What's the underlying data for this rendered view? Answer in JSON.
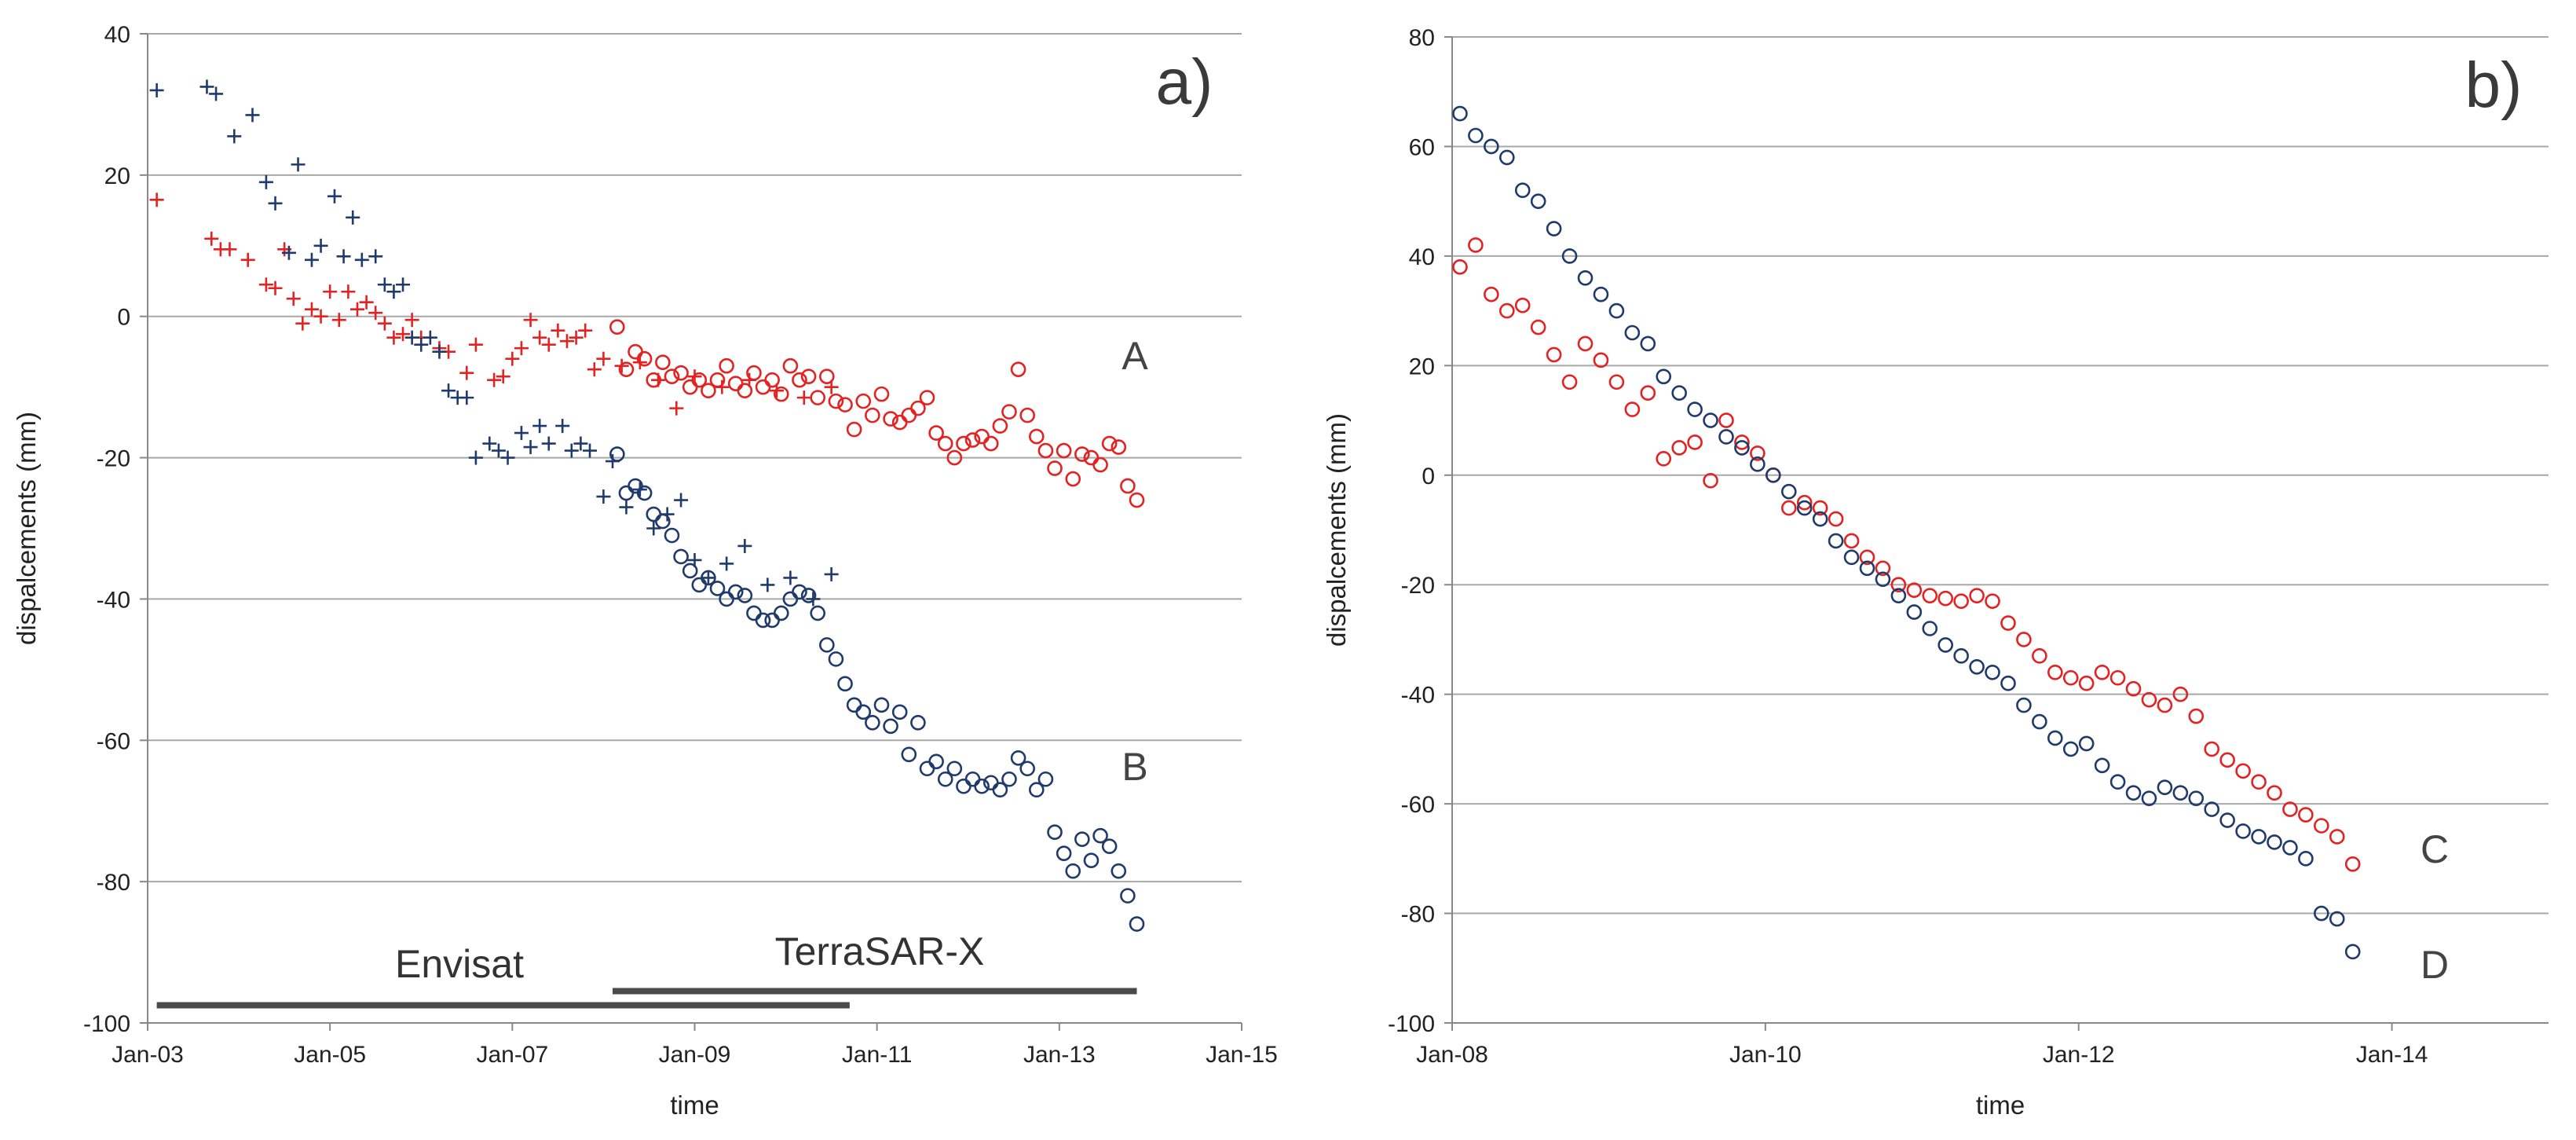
{
  "chart_data": [
    {
      "panel": "a)",
      "type": "scatter",
      "xlabel": "time",
      "ylabel": "dispalcements (mm)",
      "xticks": [
        "Jan-03",
        "Jan-05",
        "Jan-07",
        "Jan-09",
        "Jan-11",
        "Jan-13",
        "Jan-15"
      ],
      "xlim": [
        2003,
        2015
      ],
      "ylim": [
        -100,
        40
      ],
      "yticks": [
        -100,
        -80,
        -60,
        -40,
        -20,
        0,
        20,
        40
      ],
      "grid": "horizontal",
      "colors": {
        "A": "#e32222",
        "B": "#1f3a6b",
        "bar": "#4a4a4a"
      },
      "series": [
        {
          "name": "A",
          "sensor": "Envisat",
          "marker": "plus",
          "color": "#e32222",
          "x": [
            2003.1,
            2003.7,
            2003.8,
            2003.9,
            2004.1,
            2004.3,
            2004.4,
            2004.5,
            2004.6,
            2004.7,
            2004.8,
            2004.9,
            2005.0,
            2005.1,
            2005.2,
            2005.3,
            2005.4,
            2005.5,
            2005.6,
            2005.7,
            2005.8,
            2005.9,
            2006.0,
            2006.2,
            2006.3,
            2006.5,
            2006.6,
            2006.8,
            2006.9,
            2007.0,
            2007.1,
            2007.2,
            2007.3,
            2007.4,
            2007.5,
            2007.6,
            2007.7,
            2007.8,
            2007.9,
            2008.0,
            2008.2,
            2008.4,
            2008.6,
            2008.8,
            2009.0,
            2009.3,
            2009.6,
            2009.9,
            2010.2,
            2010.5
          ],
          "y": [
            16.5,
            11,
            9.5,
            9.5,
            8,
            4.5,
            4,
            9.5,
            2.5,
            -1,
            1,
            0,
            3.5,
            -0.5,
            3.5,
            1,
            2,
            0.5,
            -1,
            -3,
            -2.5,
            -0.5,
            -3,
            -4.5,
            -5,
            -8,
            -4,
            -9,
            -8.5,
            -6,
            -4.5,
            -0.5,
            -3,
            -4,
            -2,
            -3.5,
            -3,
            -2,
            -7.5,
            -6,
            -7,
            -6.5,
            -9,
            -13,
            -8.5,
            -10,
            -9,
            -10.5,
            -11.5,
            -10
          ]
        },
        {
          "name": "A",
          "sensor": "TerraSAR-X",
          "marker": "circle",
          "color": "#e32222",
          "x": [
            2008.15,
            2008.25,
            2008.35,
            2008.45,
            2008.55,
            2008.65,
            2008.75,
            2008.85,
            2008.95,
            2009.05,
            2009.15,
            2009.25,
            2009.35,
            2009.45,
            2009.55,
            2009.65,
            2009.75,
            2009.85,
            2009.95,
            2010.05,
            2010.15,
            2010.25,
            2010.35,
            2010.45,
            2010.55,
            2010.65,
            2010.75,
            2010.85,
            2010.95,
            2011.05,
            2011.15,
            2011.25,
            2011.35,
            2011.45,
            2011.55,
            2011.65,
            2011.75,
            2011.85,
            2011.95,
            2012.05,
            2012.15,
            2012.25,
            2012.35,
            2012.45,
            2012.55,
            2012.65,
            2012.75,
            2012.85,
            2012.95,
            2013.05,
            2013.15,
            2013.25,
            2013.35,
            2013.45,
            2013.55,
            2013.65,
            2013.75,
            2013.85
          ],
          "y": [
            -1.5,
            -7.5,
            -5,
            -6,
            -9,
            -6.5,
            -8.5,
            -8,
            -10,
            -9,
            -10.5,
            -9,
            -7,
            -9.5,
            -10.5,
            -8,
            -10,
            -9,
            -11,
            -7,
            -9,
            -8.5,
            -11.5,
            -8.5,
            -12,
            -12.5,
            -16,
            -12,
            -14,
            -11,
            -14.5,
            -15,
            -14,
            -13,
            -11.5,
            -16.5,
            -18,
            -20,
            -18,
            -17.5,
            -17,
            -18,
            -15.5,
            -13.5,
            -7.5,
            -14,
            -17,
            -19,
            -21.5,
            -19,
            -23,
            -19.5,
            -20,
            -21,
            -18,
            -18.5,
            -24,
            -26
          ]
        },
        {
          "name": "B",
          "sensor": "Envisat",
          "marker": "plus",
          "color": "#1f3a6b",
          "x": [
            2003.1,
            2003.65,
            2003.75,
            2003.95,
            2004.15,
            2004.3,
            2004.4,
            2004.55,
            2004.65,
            2004.8,
            2004.9,
            2005.05,
            2005.15,
            2005.25,
            2005.35,
            2005.5,
            2005.6,
            2005.7,
            2005.8,
            2005.9,
            2006.0,
            2006.1,
            2006.2,
            2006.3,
            2006.4,
            2006.5,
            2006.6,
            2006.75,
            2006.85,
            2006.95,
            2007.1,
            2007.2,
            2007.3,
            2007.4,
            2007.55,
            2007.65,
            2007.75,
            2007.85,
            2008.0,
            2008.1,
            2008.25,
            2008.4,
            2008.55,
            2008.7,
            2008.85,
            2009.0,
            2009.15,
            2009.35,
            2009.55,
            2009.8,
            2010.05,
            2010.3,
            2010.5
          ],
          "y": [
            32,
            32.5,
            31.5,
            25.5,
            28.5,
            19,
            16,
            9,
            21.5,
            8,
            10,
            17,
            8.5,
            14,
            8,
            8.5,
            4.5,
            3.5,
            4.5,
            -3,
            -4,
            -3,
            -5,
            -10.5,
            -11.5,
            -11.5,
            -20,
            -18,
            -19,
            -20,
            -16.5,
            -18.5,
            -15.5,
            -18,
            -15.5,
            -19,
            -18,
            -19,
            -25.5,
            -20.5,
            -27,
            -24.5,
            -30,
            -28,
            -26,
            -34.5,
            -37,
            -35,
            -32.5,
            -38,
            -37,
            -40,
            -36.5
          ]
        },
        {
          "name": "B",
          "sensor": "TerraSAR-X",
          "marker": "circle",
          "color": "#1f3a6b",
          "x": [
            2008.15,
            2008.25,
            2008.35,
            2008.45,
            2008.55,
            2008.65,
            2008.75,
            2008.85,
            2008.95,
            2009.05,
            2009.15,
            2009.25,
            2009.35,
            2009.45,
            2009.55,
            2009.65,
            2009.75,
            2009.85,
            2009.95,
            2010.05,
            2010.15,
            2010.25,
            2010.35,
            2010.45,
            2010.55,
            2010.65,
            2010.75,
            2010.85,
            2010.95,
            2011.05,
            2011.15,
            2011.25,
            2011.35,
            2011.45,
            2011.55,
            2011.65,
            2011.75,
            2011.85,
            2011.95,
            2012.05,
            2012.15,
            2012.25,
            2012.35,
            2012.45,
            2012.55,
            2012.65,
            2012.75,
            2012.85,
            2012.95,
            2013.05,
            2013.15,
            2013.25,
            2013.35,
            2013.45,
            2013.55,
            2013.65,
            2013.75,
            2013.85
          ],
          "y": [
            -19.5,
            -25,
            -24,
            -25,
            -28,
            -29,
            -31,
            -34,
            -36,
            -38,
            -37,
            -38.5,
            -40,
            -39,
            -39.5,
            -42,
            -43,
            -43,
            -42,
            -40,
            -39,
            -39.5,
            -42,
            -46.5,
            -48.5,
            -52,
            -55,
            -56,
            -57.5,
            -55,
            -58,
            -56,
            -62,
            -57.5,
            -64,
            -63,
            -65.5,
            -64,
            -66.5,
            -65.5,
            -66.5,
            -66,
            -67,
            -65.5,
            -62.5,
            -64,
            -67,
            -65.5,
            -73,
            -76,
            -78.5,
            -74,
            -77,
            -73.5,
            -75,
            -78.5,
            -82,
            -86
          ]
        }
      ],
      "annotations": {
        "series_labels": [
          "A",
          "B"
        ],
        "bars": [
          "Envisat",
          "TerraSAR-X"
        ]
      },
      "bars": [
        {
          "label": "Envisat",
          "start": 2003.1,
          "end": 2010.7,
          "y": -97.5
        },
        {
          "label": "TerraSAR-X",
          "start": 2008.1,
          "end": 2013.85,
          "y": -95.5
        }
      ]
    },
    {
      "panel": "b)",
      "type": "scatter",
      "xlabel": "time",
      "ylabel": "dispalcements (mm)",
      "xticks": [
        "Jan-08",
        "Jan-10",
        "Jan-12",
        "Jan-14"
      ],
      "xlim": [
        2008,
        2015
      ],
      "ylim": [
        -100,
        80
      ],
      "yticks": [
        -100,
        -80,
        -60,
        -40,
        -20,
        0,
        20,
        40,
        60,
        80
      ],
      "grid": "horizontal",
      "colors": {
        "C": "#e32222",
        "D": "#1f3a6b"
      },
      "series": [
        {
          "name": "C",
          "marker": "circle",
          "color": "#e32222",
          "x": [
            2008.05,
            2008.15,
            2008.25,
            2008.35,
            2008.45,
            2008.55,
            2008.65,
            2008.75,
            2008.85,
            2008.95,
            2009.05,
            2009.15,
            2009.25,
            2009.35,
            2009.45,
            2009.55,
            2009.65,
            2009.75,
            2009.85,
            2009.95,
            2010.05,
            2010.15,
            2010.25,
            2010.35,
            2010.45,
            2010.55,
            2010.65,
            2010.75,
            2010.85,
            2010.95,
            2011.05,
            2011.15,
            2011.25,
            2011.35,
            2011.45,
            2011.55,
            2011.65,
            2011.75,
            2011.85,
            2011.95,
            2012.05,
            2012.15,
            2012.25,
            2012.35,
            2012.45,
            2012.55,
            2012.65,
            2012.75,
            2012.85,
            2012.95,
            2013.05,
            2013.15,
            2013.25,
            2013.35,
            2013.45,
            2013.55,
            2013.65,
            2013.75
          ],
          "y": [
            38,
            42,
            33,
            30,
            31,
            27,
            22,
            17,
            24,
            21,
            17,
            12,
            15,
            3,
            5,
            6,
            -1,
            10,
            6,
            4,
            0,
            -6,
            -5,
            -6,
            -8,
            -12,
            -15,
            -17,
            -20,
            -21,
            -22,
            -22.5,
            -23,
            -22,
            -23,
            -27,
            -30,
            -33,
            -36,
            -37,
            -38,
            -36,
            -37,
            -39,
            -41,
            -42,
            -40,
            -44,
            -50,
            -52,
            -54,
            -56,
            -58,
            -61,
            -62,
            -64,
            -66,
            -71
          ]
        },
        {
          "name": "D",
          "marker": "circle",
          "color": "#1f3a6b",
          "x": [
            2008.05,
            2008.15,
            2008.25,
            2008.35,
            2008.45,
            2008.55,
            2008.65,
            2008.75,
            2008.85,
            2008.95,
            2009.05,
            2009.15,
            2009.25,
            2009.35,
            2009.45,
            2009.55,
            2009.65,
            2009.75,
            2009.85,
            2009.95,
            2010.05,
            2010.15,
            2010.25,
            2010.35,
            2010.45,
            2010.55,
            2010.65,
            2010.75,
            2010.85,
            2010.95,
            2011.05,
            2011.15,
            2011.25,
            2011.35,
            2011.45,
            2011.55,
            2011.65,
            2011.75,
            2011.85,
            2011.95,
            2012.05,
            2012.15,
            2012.25,
            2012.35,
            2012.45,
            2012.55,
            2012.65,
            2012.75,
            2012.85,
            2012.95,
            2013.05,
            2013.15,
            2013.25,
            2013.35,
            2013.45,
            2013.55,
            2013.65,
            2013.75
          ],
          "y": [
            66,
            62,
            60,
            58,
            52,
            50,
            45,
            40,
            36,
            33,
            30,
            26,
            24,
            18,
            15,
            12,
            10,
            7,
            5,
            2,
            0,
            -3,
            -6,
            -8,
            -12,
            -15,
            -17,
            -19,
            -22,
            -25,
            -28,
            -31,
            -33,
            -35,
            -36,
            -38,
            -42,
            -45,
            -48,
            -50,
            -49,
            -53,
            -56,
            -58,
            -59,
            -57,
            -58,
            -59,
            -61,
            -63,
            -65,
            -66,
            -67,
            -68,
            -70,
            -80,
            -81,
            -87
          ]
        }
      ],
      "annotations": {
        "series_labels": [
          "C",
          "D"
        ]
      }
    }
  ]
}
